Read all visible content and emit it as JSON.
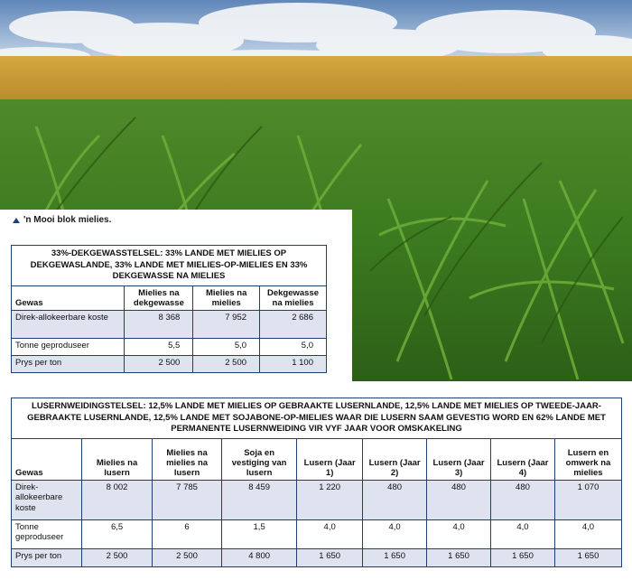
{
  "caption": "'n Mooi blok mielies.",
  "table1": {
    "title": "33%-DEKGEWASSTELSEL: 33% LANDE MET MIELIES OP DEKGEWASLANDE, 33% LANDE MET MIELIES-OP-MIELIES EN 33% DEKGEWASSE NA MIELIES",
    "headers": [
      "Gewas",
      "Mielies na dekgewasse",
      "Mielies na mielies",
      "Dekgewasse na mielies"
    ],
    "rows": [
      {
        "label": "Direk-allokeerbare koste",
        "values": [
          "8 368",
          "7 952",
          "2 686"
        ]
      },
      {
        "label": "Tonne geproduseer",
        "values": [
          "5,5",
          "5,0",
          "5,0"
        ]
      },
      {
        "label": "Prys per ton",
        "values": [
          "2 500",
          "2 500",
          "1 100"
        ]
      }
    ]
  },
  "table2": {
    "title": "LUSERNWEIDINGSTELSEL: 12,5% LANDE MET MIELIES OP GEBRAAKTE LUSERNLANDE, 12,5% LANDE MET MIELIES OP TWEEDE-JAAR-GEBRAAKTE LUSERNLANDE, 12,5% LANDE MET SOJABONE-OP-MIELIES WAAR DIE LUSERN SAAM GEVESTIG WORD EN 62% LANDE MET PERMANENTE LUSERNWEIDING VIR VYF JAAR VOOR OMSKAKELING",
    "headers": [
      "Gewas",
      "Mielies na lusern",
      "Mielies na mielies na lusern",
      "Soja en vestiging van lusern",
      "Lusern (Jaar 1)",
      "Lusern (Jaar 2)",
      "Lusern (Jaar 3)",
      "Lusern (Jaar 4)",
      "Lusern en omwerk na mielies"
    ],
    "rows": [
      {
        "label": "Direk-allokeerbare koste",
        "values": [
          "8 002",
          "7 785",
          "8 459",
          "1 220",
          "480",
          "480",
          "480",
          "1 070"
        ]
      },
      {
        "label": "Tonne geproduseer",
        "values": [
          "6,5",
          "6",
          "1,5",
          "4,0",
          "4,0",
          "4,0",
          "4,0",
          "4,0"
        ]
      },
      {
        "label": "Prys per ton",
        "values": [
          "2 500",
          "2 500",
          "4 800",
          "1 650",
          "1 650",
          "1 650",
          "1 650",
          "1 650"
        ]
      }
    ]
  }
}
